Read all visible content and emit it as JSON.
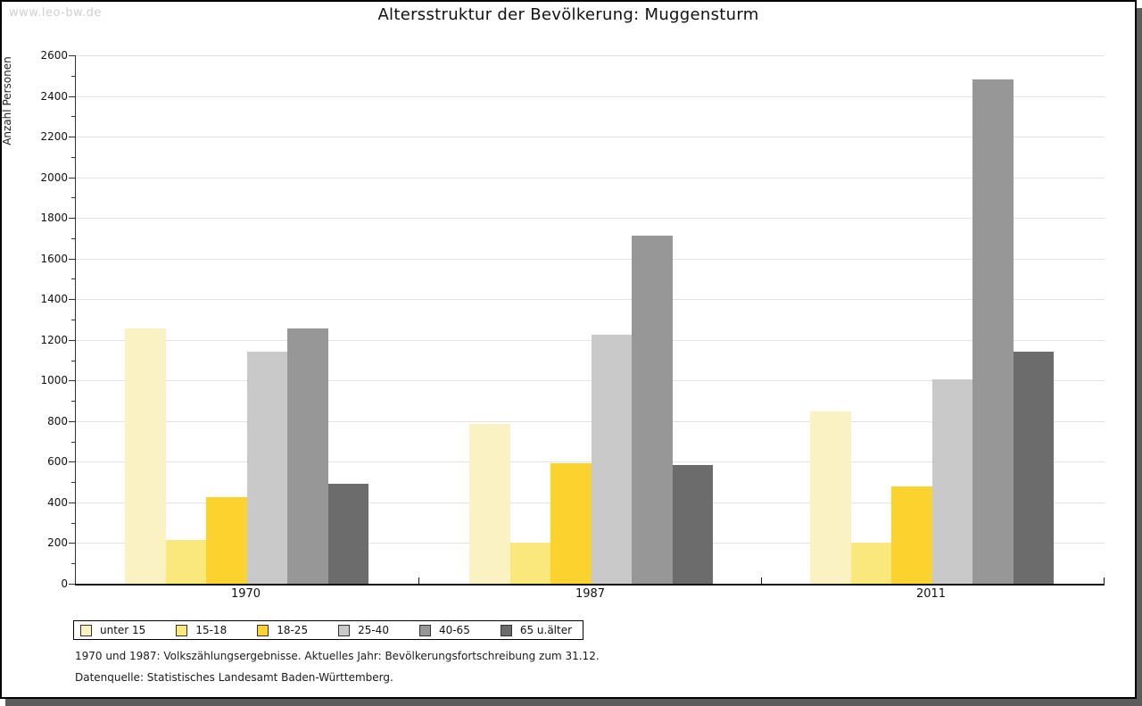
{
  "watermark": "www.leo-bw.de",
  "chart_data": {
    "type": "bar",
    "title": "Altersstruktur der Bevölkerung: Muggensturm",
    "ylabel": "Anzahl Personen",
    "xlabel": "",
    "categories": [
      "1970",
      "1987",
      "2011"
    ],
    "series": [
      {
        "name": "unter 15",
        "color": "#FBF2C3",
        "values": [
          1258,
          787,
          847
        ]
      },
      {
        "name": "15-18",
        "color": "#FAE87C",
        "values": [
          215,
          200,
          200
        ]
      },
      {
        "name": "18-25",
        "color": "#FCD32E",
        "values": [
          428,
          595,
          478
        ]
      },
      {
        "name": "25-40",
        "color": "#C9C9C9",
        "values": [
          1143,
          1226,
          1007
        ]
      },
      {
        "name": "40-65",
        "color": "#979797",
        "values": [
          1254,
          1715,
          2483
        ]
      },
      {
        "name": "65 u.älter",
        "color": "#6C6C6C",
        "values": [
          490,
          585,
          1142
        ]
      }
    ],
    "ylim": [
      0,
      2600
    ],
    "ytick_step": 200,
    "minor_tick_step": 100,
    "grid": true,
    "legend_position": "bottom-left"
  },
  "footnotes": [
    "1970 und 1987: Volkszählungsergebnisse. Aktuelles Jahr: Bevölkerungsfortschreibung zum 31.12.",
    "Datenquelle: Statistisches Landesamt Baden-Württemberg."
  ]
}
